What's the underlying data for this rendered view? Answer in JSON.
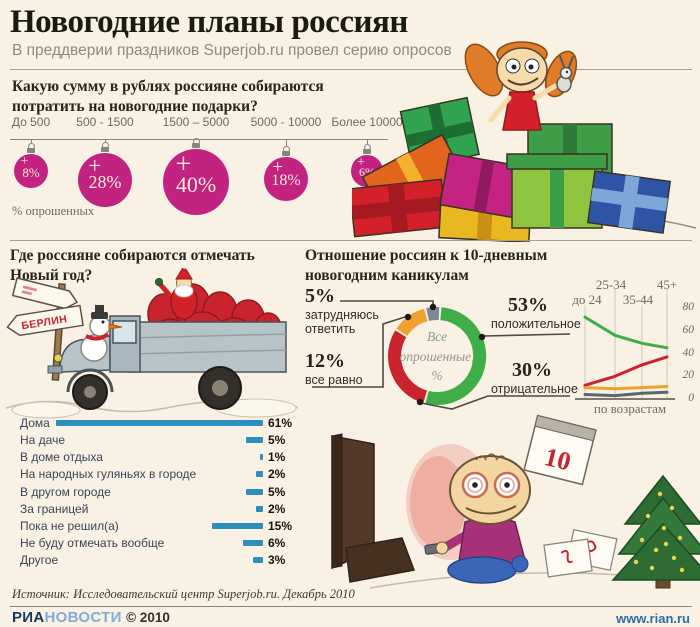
{
  "page": {
    "title": "Новогодние планы россиян",
    "subtitle": "В преддверии праздников Superjob.ru провел серию опросов",
    "background": "#f8f1e4"
  },
  "spend": {
    "question_line1": "Какую сумму в рублях россияне собираются",
    "question_line2": "потратить на новогодние подарки?",
    "note": "% опрошенных"
  },
  "celebrate": {
    "question_line1": "Где россияне собираются отмечать",
    "question_line2": "Новый год?",
    "sign": "БЕРЛИН"
  },
  "holidays": {
    "question_line1": "Отношение россиян к 10-дневным",
    "question_line2": "новогодним каникулам",
    "center_lines": [
      "Все",
      "опрошенные,",
      "%"
    ],
    "callouts": [
      {
        "pct": "5%",
        "label": "затрудняюсь ответить"
      },
      {
        "pct": "12%",
        "label": "все равно"
      },
      {
        "pct": "53%",
        "label": "положительное"
      },
      {
        "pct": "30%",
        "label": "отрицательное"
      }
    ],
    "age_note": "по возрастам"
  },
  "illustration": {
    "calendar_number": "10"
  },
  "footer": {
    "source": "Источник: Исследовательский центр Superjob.ru. Декабрь 2010",
    "brand_part1": "РИА",
    "brand_part2": "НОВОСТИ",
    "copyright": "© 2010",
    "url": "www.rian.ru"
  },
  "chart_data": [
    {
      "type": "bar",
      "style": "christmas-ornament-bubbles",
      "title": "Какую сумму в рублях россияне собираются потратить на новогодние подарки?",
      "unit": "% опрошенных",
      "categories": [
        "До 500",
        "500 - 1500",
        "1500 – 5000",
        "5000 - 10000",
        "Более 10000"
      ],
      "values": [
        8,
        28,
        40,
        18,
        6
      ],
      "color": "#c32380"
    },
    {
      "type": "bar",
      "orientation": "horizontal",
      "title": "Где россияне собираются отмечать Новый год?",
      "unit": "%",
      "categories": [
        "Дома",
        "На даче",
        "В доме отдыха",
        "На народных гуляньях в городе",
        "В другом городе",
        "За границей",
        "Пока не решил(а)",
        "Не буду отмечать вообще",
        "Другое"
      ],
      "values": [
        61,
        5,
        1,
        2,
        5,
        2,
        15,
        6,
        3
      ],
      "color": "#2e8dbf"
    },
    {
      "type": "pie",
      "style": "donut",
      "title": "Отношение россиян к 10-дневным новогодним каникулам",
      "center_label": "Все опрошенные, %",
      "start_angle_deg": -14,
      "slices": [
        {
          "label": "затрудняюсь ответить",
          "value": 5,
          "color": "#7d8894"
        },
        {
          "label": "положительное",
          "value": 53,
          "color": "#3fae49"
        },
        {
          "label": "отрицательное",
          "value": 30,
          "color": "#c9232d"
        },
        {
          "label": "все равно",
          "value": 12,
          "color": "#f0a231"
        }
      ]
    },
    {
      "type": "line",
      "title": "по возрастам",
      "x": [
        "до 24",
        "25-34",
        "35-44",
        "45+"
      ],
      "ylim": [
        0,
        80
      ],
      "y_ticks": [
        0,
        20,
        40,
        60,
        80
      ],
      "grid": "vertical",
      "legend": "none",
      "series": [
        {
          "name": "положительное",
          "color": "#3fae49",
          "values": [
            72,
            56,
            49,
            45
          ]
        },
        {
          "name": "отрицательное",
          "color": "#c9232d",
          "values": [
            12,
            20,
            30,
            37
          ]
        },
        {
          "name": "все равно",
          "color": "#f0a231",
          "values": [
            10,
            9,
            10,
            11
          ]
        },
        {
          "name": "затрудняюсь ответить",
          "color": "#5c6670",
          "values": [
            4,
            3,
            5,
            6
          ]
        }
      ]
    }
  ]
}
